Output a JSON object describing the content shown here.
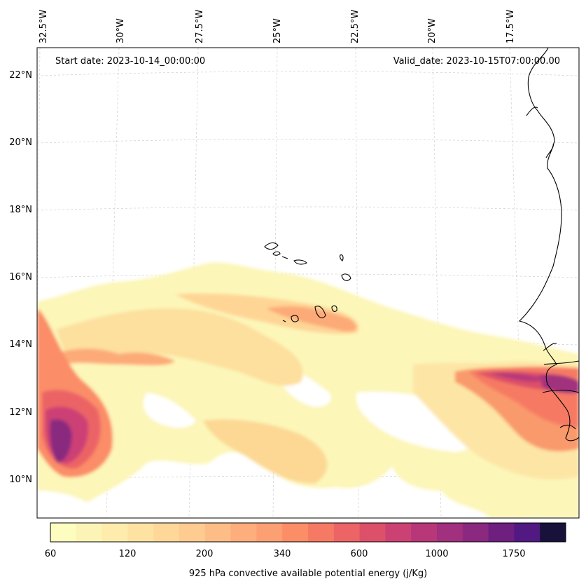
{
  "header": {
    "start_date": "Start date: 2023-10-14_00:00:00",
    "valid_date": "Valid_date: 2023-10-15T07:00:00.00"
  },
  "longitude_labels": [
    "32.5°W",
    "30°W",
    "27.5°W",
    "25°W",
    "22.5°W",
    "20°W",
    "17.5°W"
  ],
  "latitude_labels": [
    "22°N",
    "20°N",
    "18°N",
    "16°N",
    "14°N",
    "12°N",
    "10°N"
  ],
  "colorbar": {
    "label": "925 hPa convective available potential energy (j/Kg)",
    "tick_labels": [
      "60",
      "120",
      "200",
      "340",
      "600",
      "1000",
      "1750"
    ],
    "colors": [
      "#fcfdbf",
      "#fcf4b6",
      "#fdecac",
      "#fde2a1",
      "#fed799",
      "#fecb90",
      "#febd86",
      "#fdae7c",
      "#fc9f73",
      "#fb8d67",
      "#f67a63",
      "#ec6466",
      "#dd5069",
      "#cc4174",
      "#b73779",
      "#a1307e",
      "#8a297f",
      "#6e1f80",
      "#521982",
      "#18123a"
    ]
  },
  "chart_data": {
    "type": "heatmap",
    "variable": "925 hPa convective available potential energy",
    "units": "j/Kg",
    "levels": [
      60,
      120,
      200,
      340,
      600,
      1000,
      1750
    ],
    "lon_range": [
      "32.5°W",
      "17.5°W"
    ],
    "lat_range": [
      "10°N",
      "22°N"
    ],
    "max_regions": [
      "about 11°N 31.5°W (above 1750)",
      "about 13°N 16.5°W (above 1000)"
    ]
  }
}
